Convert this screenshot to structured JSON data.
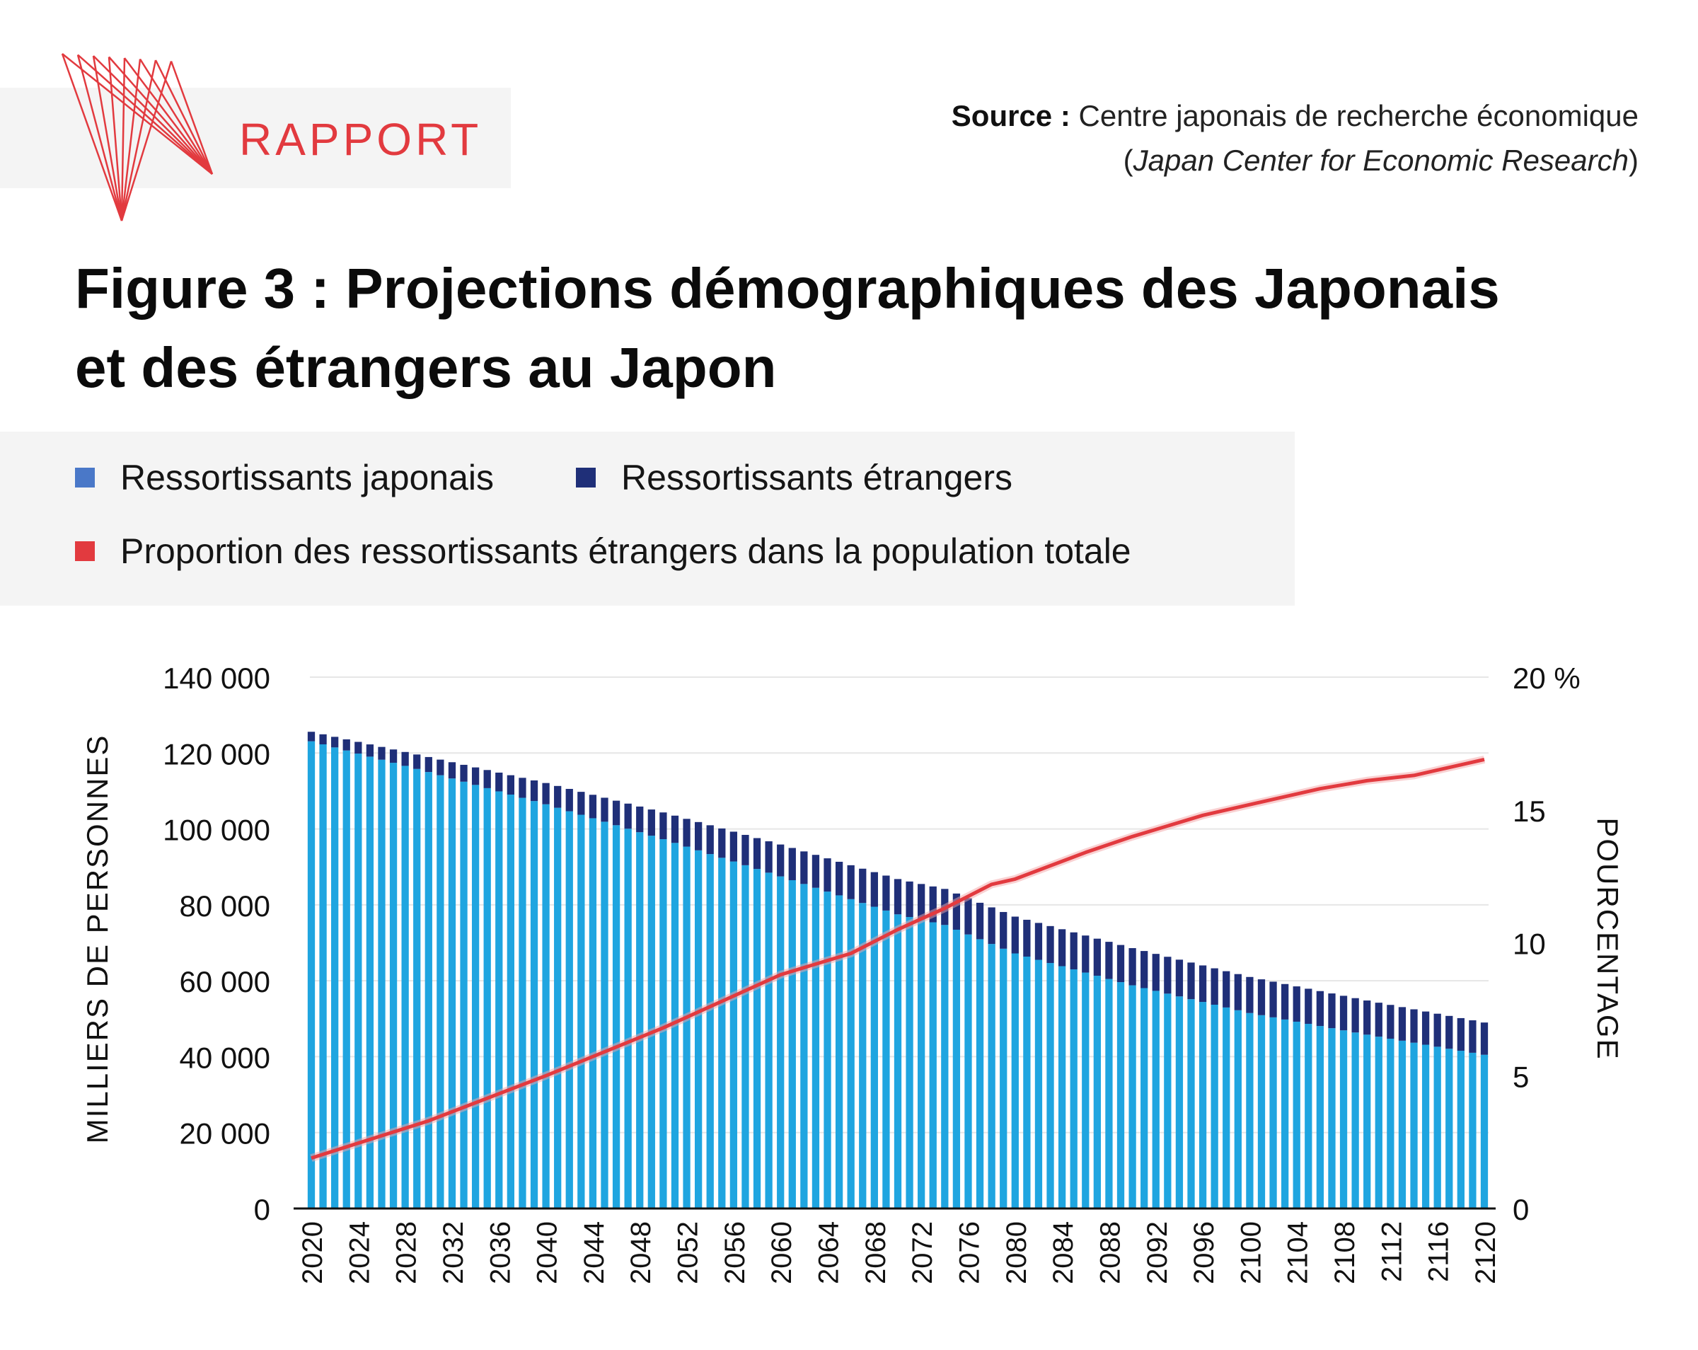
{
  "brand": {
    "label": "RAPPORT",
    "logo_icon": "red-line-fan-logo",
    "accent_color": "#e23a3f"
  },
  "source": {
    "label": "Source :",
    "line1": "Centre japonais de recherche économique",
    "line2_open": "(",
    "line2_italic": "Japan Center for Economic Research",
    "line2_close": ")"
  },
  "title": {
    "line1": "Figure 3 : Projections démographiques des Japonais",
    "line2": "et des étrangers au Japon"
  },
  "legend": [
    {
      "label": "Ressortissants japonais",
      "color": "#4a78c8"
    },
    {
      "label": "Ressortissants étrangers",
      "color": "#1f2f78"
    },
    {
      "label": "Proportion des ressortissants étrangers dans la population totale",
      "color": "#e23a3f"
    }
  ],
  "chart_data": {
    "type": "bar",
    "stacked": true,
    "combo": "bar+line",
    "xlabel": "",
    "ylabel": "MILLIERS DE PERSONNES",
    "ylabel_right": "POURCENTAGE",
    "ylim": [
      0,
      140000
    ],
    "ylim_right": [
      0,
      20
    ],
    "y_ticks": [
      "140 000",
      "120 000",
      "100 000",
      "80 000",
      "60 000",
      "40 000",
      "20 000",
      "0"
    ],
    "y_right_ticks": [
      "20 %",
      "15",
      "10",
      "5",
      "0"
    ],
    "x_tick_labels": [
      "2020",
      "2024",
      "2028",
      "2032",
      "2036",
      "2040",
      "2044",
      "2048",
      "2052",
      "2056",
      "2060",
      "2064",
      "2068",
      "2072",
      "2076",
      "2080",
      "2084",
      "2088",
      "2092",
      "2096",
      "2100",
      "2104",
      "2108",
      "2112",
      "2116",
      "2120"
    ],
    "grid": true,
    "x_start": 2020,
    "x_end": 2120,
    "bar_colors": {
      "japonais": "#1fa5e0",
      "etrangers": "#1f2f78"
    },
    "line_color": "#e23a3f",
    "series": [
      {
        "name": "Ressortissants japonais",
        "axis": "left",
        "type": "bar",
        "keypoints": [
          [
            2020,
            123100
          ],
          [
            2030,
            115000
          ],
          [
            2040,
            106500
          ],
          [
            2050,
            97300
          ],
          [
            2060,
            87500
          ],
          [
            2070,
            77500
          ],
          [
            2074,
            74700
          ],
          [
            2080,
            67200
          ],
          [
            2090,
            58800
          ],
          [
            2100,
            51500
          ],
          [
            2110,
            45800
          ],
          [
            2120,
            40500
          ]
        ]
      },
      {
        "name": "Ressortissants étrangers",
        "axis": "left",
        "type": "bar",
        "keypoints": [
          [
            2020,
            2500
          ],
          [
            2030,
            3950
          ],
          [
            2040,
            5600
          ],
          [
            2050,
            7050
          ],
          [
            2060,
            8400
          ],
          [
            2070,
            9300
          ],
          [
            2074,
            9500
          ],
          [
            2080,
            9700
          ],
          [
            2090,
            9800
          ],
          [
            2100,
            9500
          ],
          [
            2110,
            9000
          ],
          [
            2120,
            8500
          ]
        ]
      },
      {
        "name": "Proportion des ressortissants étrangers dans la population totale",
        "axis": "right",
        "type": "line",
        "keypoints": [
          [
            2020,
            1.9
          ],
          [
            2030,
            3.3
          ],
          [
            2040,
            5.0
          ],
          [
            2050,
            6.8
          ],
          [
            2060,
            8.8
          ],
          [
            2066,
            9.6
          ],
          [
            2070,
            10.5
          ],
          [
            2074,
            11.3
          ],
          [
            2078,
            12.2
          ],
          [
            2080,
            12.4
          ],
          [
            2086,
            13.4
          ],
          [
            2090,
            14.0
          ],
          [
            2096,
            14.8
          ],
          [
            2100,
            15.2
          ],
          [
            2106,
            15.8
          ],
          [
            2110,
            16.1
          ],
          [
            2114,
            16.3
          ],
          [
            2118,
            16.7
          ],
          [
            2120,
            16.9
          ]
        ]
      }
    ]
  }
}
